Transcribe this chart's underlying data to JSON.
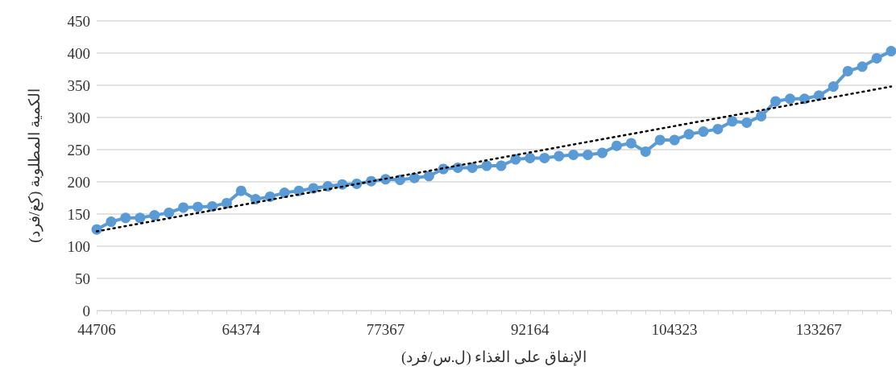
{
  "chart_data": {
    "type": "line",
    "xlabel": "الإنفاق على الغذاء (ل.س/فرد)",
    "ylabel": "الكمية المطلوبة (كغ/فرد)",
    "categories": [
      "44706",
      null,
      null,
      null,
      null,
      null,
      null,
      null,
      null,
      null,
      "64374",
      null,
      null,
      null,
      null,
      null,
      null,
      null,
      null,
      null,
      "77367",
      null,
      null,
      null,
      null,
      null,
      null,
      null,
      null,
      null,
      "92164",
      null,
      null,
      null,
      null,
      null,
      null,
      null,
      null,
      null,
      "104323",
      null,
      null,
      null,
      null,
      null,
      null,
      null,
      null,
      null,
      "133267",
      null,
      null,
      null,
      null,
      null
    ],
    "series": [
      {
        "color": "#5b9bd5",
        "marker": "circle",
        "line_style": "solid",
        "values": [
          126,
          138,
          144,
          144,
          148,
          152,
          160,
          161,
          162,
          167,
          186,
          173,
          177,
          183,
          186,
          190,
          193,
          196,
          197,
          201,
          204,
          203,
          206,
          209,
          220,
          222,
          222,
          225,
          225,
          235,
          237,
          237,
          240,
          242,
          242,
          245,
          256,
          260,
          247,
          265,
          265,
          274,
          278,
          282,
          294,
          292,
          302,
          325,
          329,
          329,
          334,
          348,
          372,
          379,
          392,
          403
        ]
      },
      {
        "type": "line",
        "color": "#000000",
        "marker": "none",
        "line_style": "dotted",
        "values": [
          123,
          null,
          null,
          null,
          null,
          null,
          null,
          null,
          null,
          null,
          null,
          null,
          null,
          null,
          null,
          null,
          null,
          null,
          null,
          null,
          null,
          null,
          null,
          null,
          null,
          null,
          null,
          null,
          null,
          null,
          null,
          null,
          null,
          null,
          null,
          null,
          null,
          null,
          null,
          null,
          null,
          null,
          null,
          null,
          null,
          null,
          null,
          null,
          null,
          null,
          null,
          null,
          null,
          null,
          null,
          348
        ]
      }
    ],
    "ylim": [
      0,
      450
    ],
    "yticks": [
      0,
      50,
      100,
      150,
      200,
      250,
      300,
      350,
      400,
      450
    ],
    "grid": "y"
  }
}
